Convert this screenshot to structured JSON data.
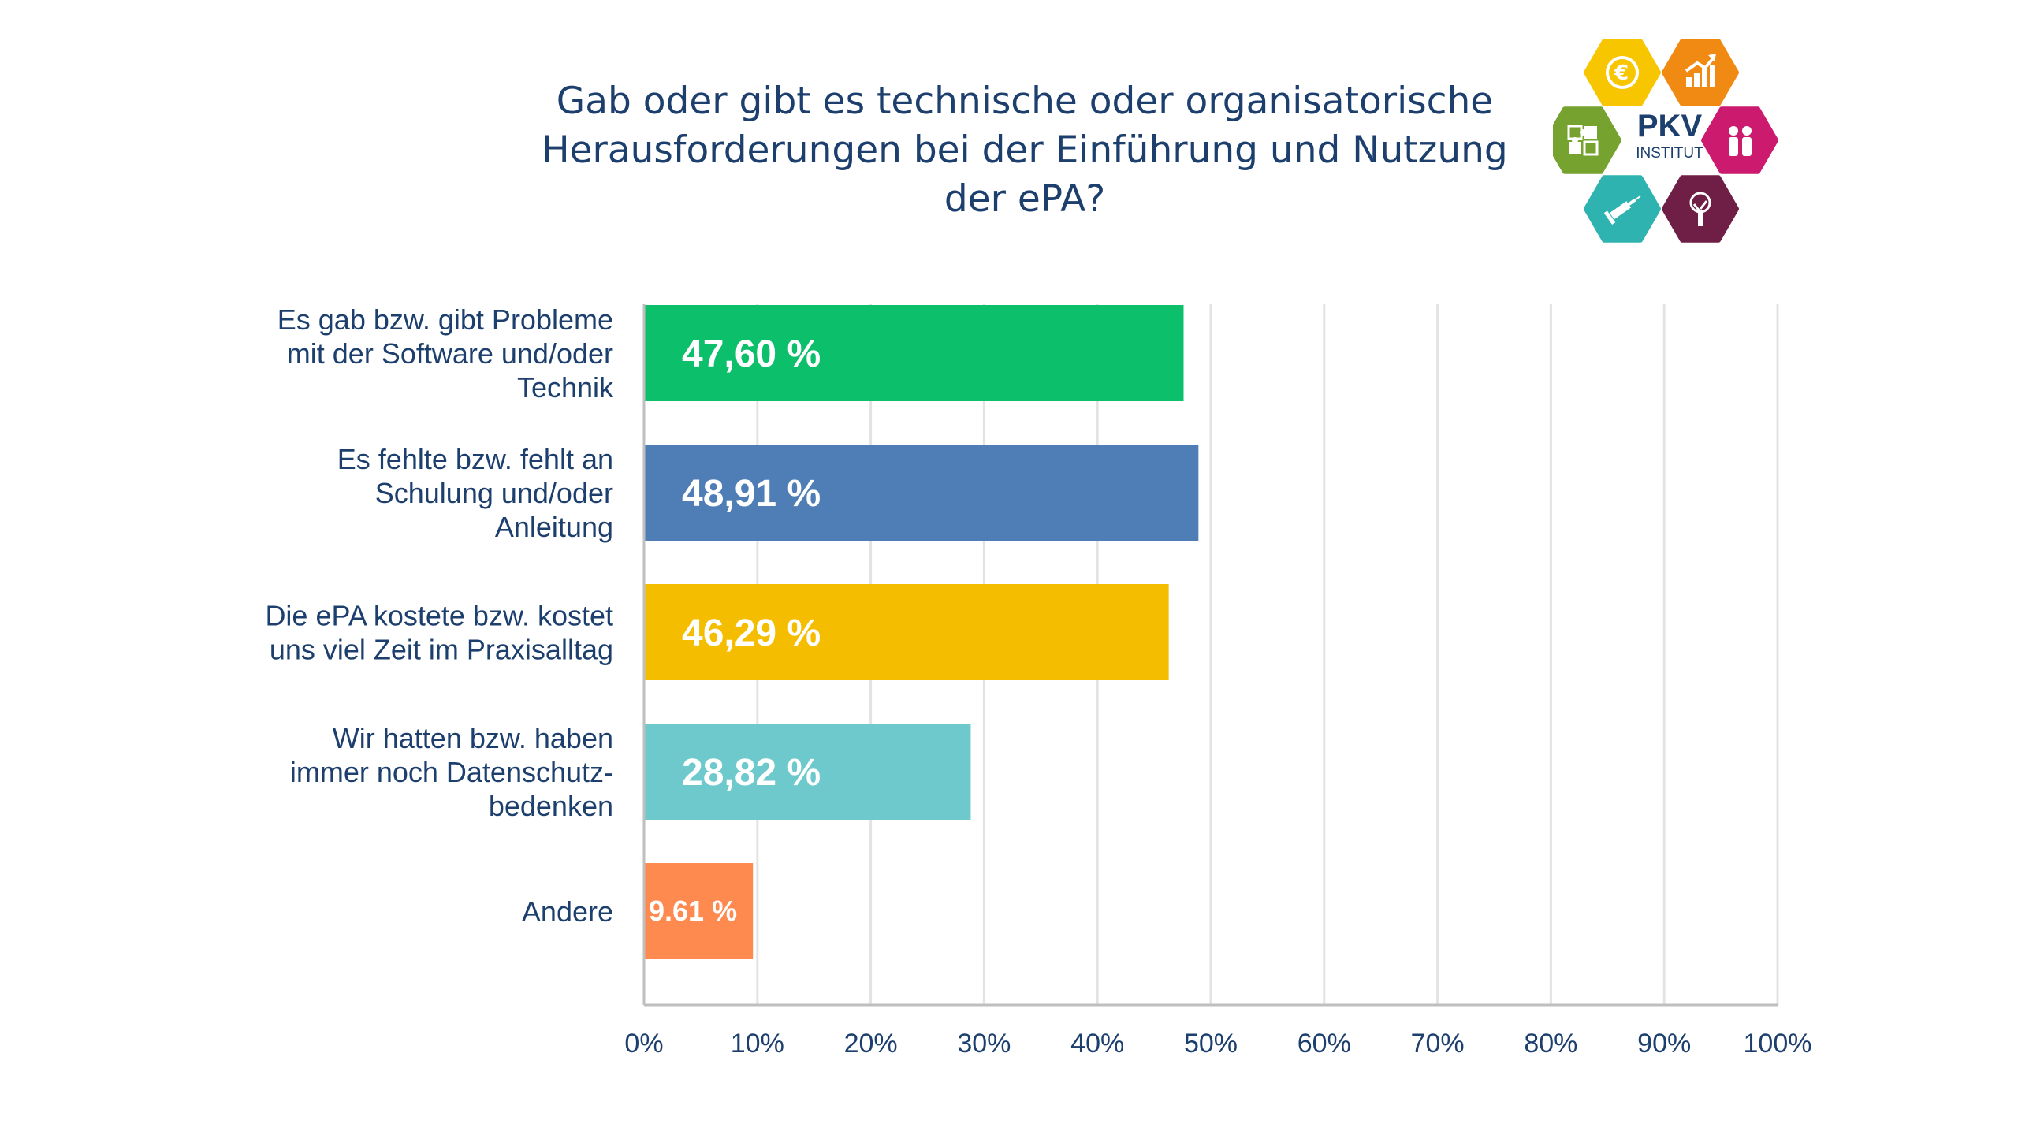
{
  "chart_data": {
    "type": "bar",
    "orientation": "horizontal",
    "title_lines": [
      "Gab oder gibt es technische oder organisatorische",
      "Herausforderungen bei der Einführung und Nutzung",
      "der ePA?"
    ],
    "categories": [
      [
        "Es gab bzw. gibt Probleme",
        "mit der Software und/oder",
        "Technik"
      ],
      [
        "Es fehlte bzw. fehlt an",
        "Schulung und/oder",
        "Anleitung"
      ],
      [
        "Die ePA kostete bzw. kostet",
        "uns viel Zeit im Praxisalltag"
      ],
      [
        "Wir hatten bzw. haben",
        "immer noch Datenschutz-",
        "bedenken"
      ],
      [
        "Andere"
      ]
    ],
    "values": [
      47.6,
      48.91,
      46.29,
      28.82,
      9.61
    ],
    "data_labels": [
      "47,60 %",
      "48,91 %",
      "46,29 %",
      "28,82 %",
      "9.61 %"
    ],
    "colors": [
      "#0bbf6b",
      "#4f7db5",
      "#f5bd00",
      "#6ec9cc",
      "#ff8a4f"
    ],
    "xlim": [
      0,
      100
    ],
    "x_ticks": [
      0,
      10,
      20,
      30,
      40,
      50,
      60,
      70,
      80,
      90,
      100
    ],
    "x_tick_labels": [
      "0%",
      "10%",
      "20%",
      "30%",
      "40%",
      "50%",
      "60%",
      "70%",
      "80%",
      "90%",
      "100%"
    ],
    "grid": true
  },
  "logo": {
    "line1": "PKV",
    "line2": "INSTITUT",
    "hex_colors": [
      "#f7c600",
      "#f08a12",
      "#76a22f",
      "#cc1a6e",
      "#2fb3b0",
      "#6f1f45"
    ],
    "hex_icons": [
      "euro-icon",
      "growth-chart-icon",
      "puzzle-icon",
      "people-icon",
      "syringe-icon",
      "tree-icon"
    ]
  },
  "colors": {
    "title": "#1d3f6e",
    "category_text": "#1d3f6e",
    "grid": "#e3e3e3",
    "axis": "#bfbfbf",
    "bar_label": "#ffffff"
  }
}
